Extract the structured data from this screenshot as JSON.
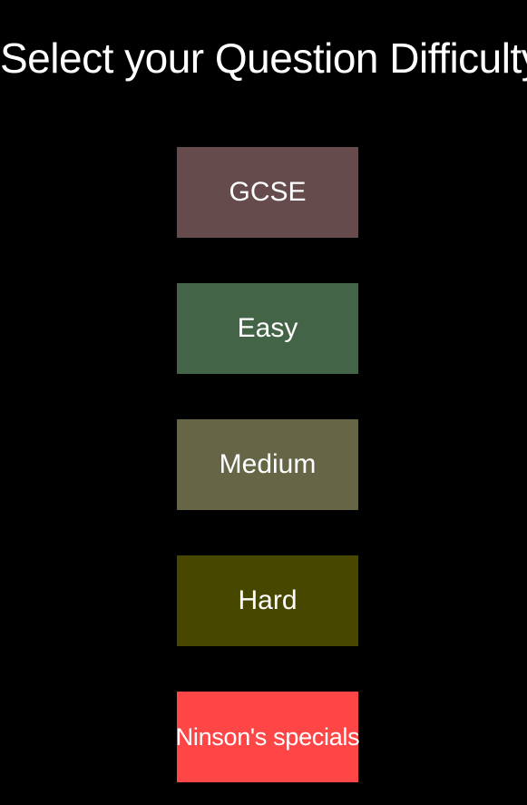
{
  "page": {
    "title": "Select your Question Difficulty"
  },
  "options": [
    {
      "label": "GCSE",
      "color": "#654b4b"
    },
    {
      "label": "Easy",
      "color": "#446447"
    },
    {
      "label": "Medium",
      "color": "#666647"
    },
    {
      "label": "Hard",
      "color": "#474700"
    },
    {
      "label": "Ninson's specials",
      "color": "#ff4646"
    }
  ]
}
